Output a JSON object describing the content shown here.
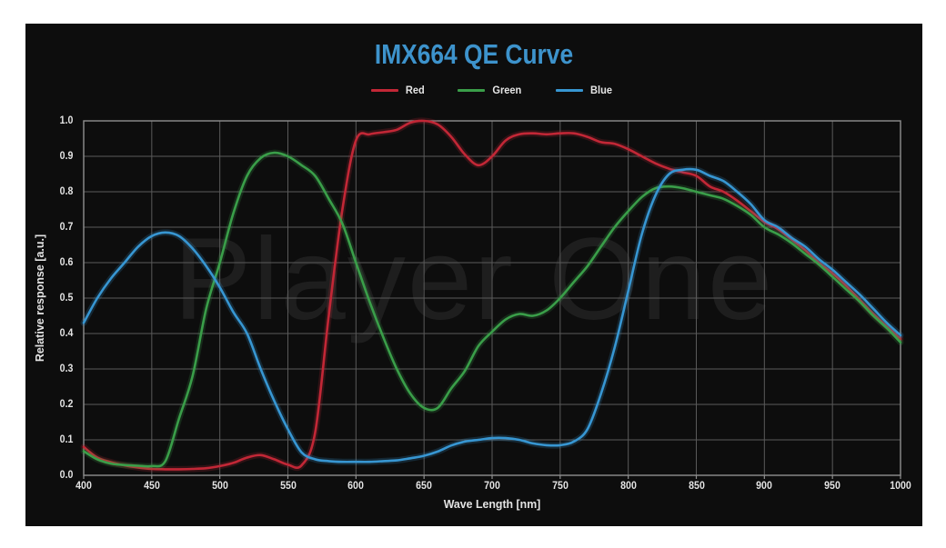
{
  "page": {
    "background": "#ffffff"
  },
  "canvas": {
    "background": "#0d0d0d"
  },
  "header": {
    "title": "IMX664 QE Curve",
    "title_color": "#3d93cc"
  },
  "watermark": {
    "text": "Player One",
    "color": "rgba(255,255,255,0.07)"
  },
  "chart_data": {
    "type": "line",
    "title": "IMX664 QE Curve",
    "xlabel": "Wave Length [nm]",
    "ylabel": "Relative response [a.u.]",
    "xlim": [
      400,
      1000
    ],
    "ylim": [
      0.0,
      1.0
    ],
    "grid": true,
    "legend_position": "top-center",
    "x_ticks": [
      400,
      450,
      500,
      550,
      600,
      650,
      700,
      750,
      800,
      850,
      900,
      950,
      1000
    ],
    "x_tick_labels": [
      "400",
      "450",
      "500",
      "550",
      "600",
      "650",
      "700",
      "750",
      "800",
      "850",
      "900",
      "950",
      "1000"
    ],
    "y_ticks": [
      0,
      0.1,
      0.2,
      0.3,
      0.4,
      0.5,
      0.6,
      0.7,
      0.8,
      0.9,
      1
    ],
    "y_tick_labels": [
      "0.0",
      "0.1",
      "0.2",
      "0.3",
      "0.4",
      "0.5",
      "0.6",
      "0.7",
      "0.8",
      "0.9",
      "1.0"
    ],
    "x": [
      400,
      410,
      420,
      430,
      440,
      450,
      460,
      470,
      480,
      490,
      500,
      510,
      520,
      530,
      540,
      550,
      560,
      570,
      580,
      590,
      600,
      610,
      620,
      630,
      640,
      650,
      660,
      670,
      680,
      690,
      700,
      710,
      720,
      730,
      740,
      750,
      760,
      770,
      780,
      790,
      800,
      810,
      820,
      830,
      840,
      850,
      860,
      870,
      880,
      890,
      900,
      910,
      920,
      930,
      940,
      950,
      960,
      970,
      980,
      990,
      1000
    ],
    "series": [
      {
        "name": "Red",
        "color": "#c22736",
        "values": [
          0.08,
          0.05,
          0.037,
          0.028,
          0.022,
          0.018,
          0.017,
          0.017,
          0.018,
          0.02,
          0.026,
          0.035,
          0.05,
          0.057,
          0.045,
          0.03,
          0.028,
          0.12,
          0.45,
          0.75,
          0.945,
          0.962,
          0.968,
          0.975,
          0.995,
          1.0,
          0.99,
          0.955,
          0.905,
          0.875,
          0.9,
          0.945,
          0.962,
          0.965,
          0.962,
          0.965,
          0.965,
          0.955,
          0.94,
          0.935,
          0.92,
          0.9,
          0.88,
          0.865,
          0.855,
          0.845,
          0.815,
          0.8,
          0.775,
          0.745,
          0.715,
          0.695,
          0.665,
          0.635,
          0.6,
          0.57,
          0.535,
          0.495,
          0.455,
          0.42,
          0.385
        ]
      },
      {
        "name": "Green",
        "color": "#3a9e49",
        "values": [
          0.068,
          0.045,
          0.033,
          0.029,
          0.027,
          0.026,
          0.04,
          0.16,
          0.28,
          0.47,
          0.6,
          0.74,
          0.845,
          0.895,
          0.91,
          0.9,
          0.875,
          0.845,
          0.78,
          0.71,
          0.6,
          0.49,
          0.39,
          0.3,
          0.23,
          0.19,
          0.19,
          0.245,
          0.295,
          0.365,
          0.405,
          0.44,
          0.455,
          0.45,
          0.465,
          0.5,
          0.545,
          0.59,
          0.645,
          0.7,
          0.745,
          0.785,
          0.81,
          0.815,
          0.81,
          0.8,
          0.79,
          0.78,
          0.76,
          0.735,
          0.7,
          0.68,
          0.655,
          0.625,
          0.595,
          0.56,
          0.525,
          0.49,
          0.45,
          0.415,
          0.375
        ]
      },
      {
        "name": "Blue",
        "color": "#3796d2",
        "values": [
          0.43,
          0.5,
          0.555,
          0.6,
          0.645,
          0.675,
          0.685,
          0.675,
          0.64,
          0.59,
          0.53,
          0.46,
          0.4,
          0.3,
          0.21,
          0.13,
          0.065,
          0.045,
          0.04,
          0.038,
          0.038,
          0.038,
          0.04,
          0.042,
          0.048,
          0.055,
          0.067,
          0.084,
          0.095,
          0.1,
          0.105,
          0.105,
          0.1,
          0.09,
          0.085,
          0.085,
          0.095,
          0.13,
          0.23,
          0.36,
          0.52,
          0.68,
          0.79,
          0.85,
          0.862,
          0.862,
          0.845,
          0.83,
          0.8,
          0.765,
          0.72,
          0.7,
          0.67,
          0.645,
          0.61,
          0.58,
          0.545,
          0.51,
          0.47,
          0.43,
          0.395
        ]
      }
    ],
    "colors": {
      "grid": "#5a5a5a",
      "border": "#8f8f8f",
      "tick_text": "#e3e3e3",
      "axis_label_text": "#e3e3e3"
    }
  }
}
